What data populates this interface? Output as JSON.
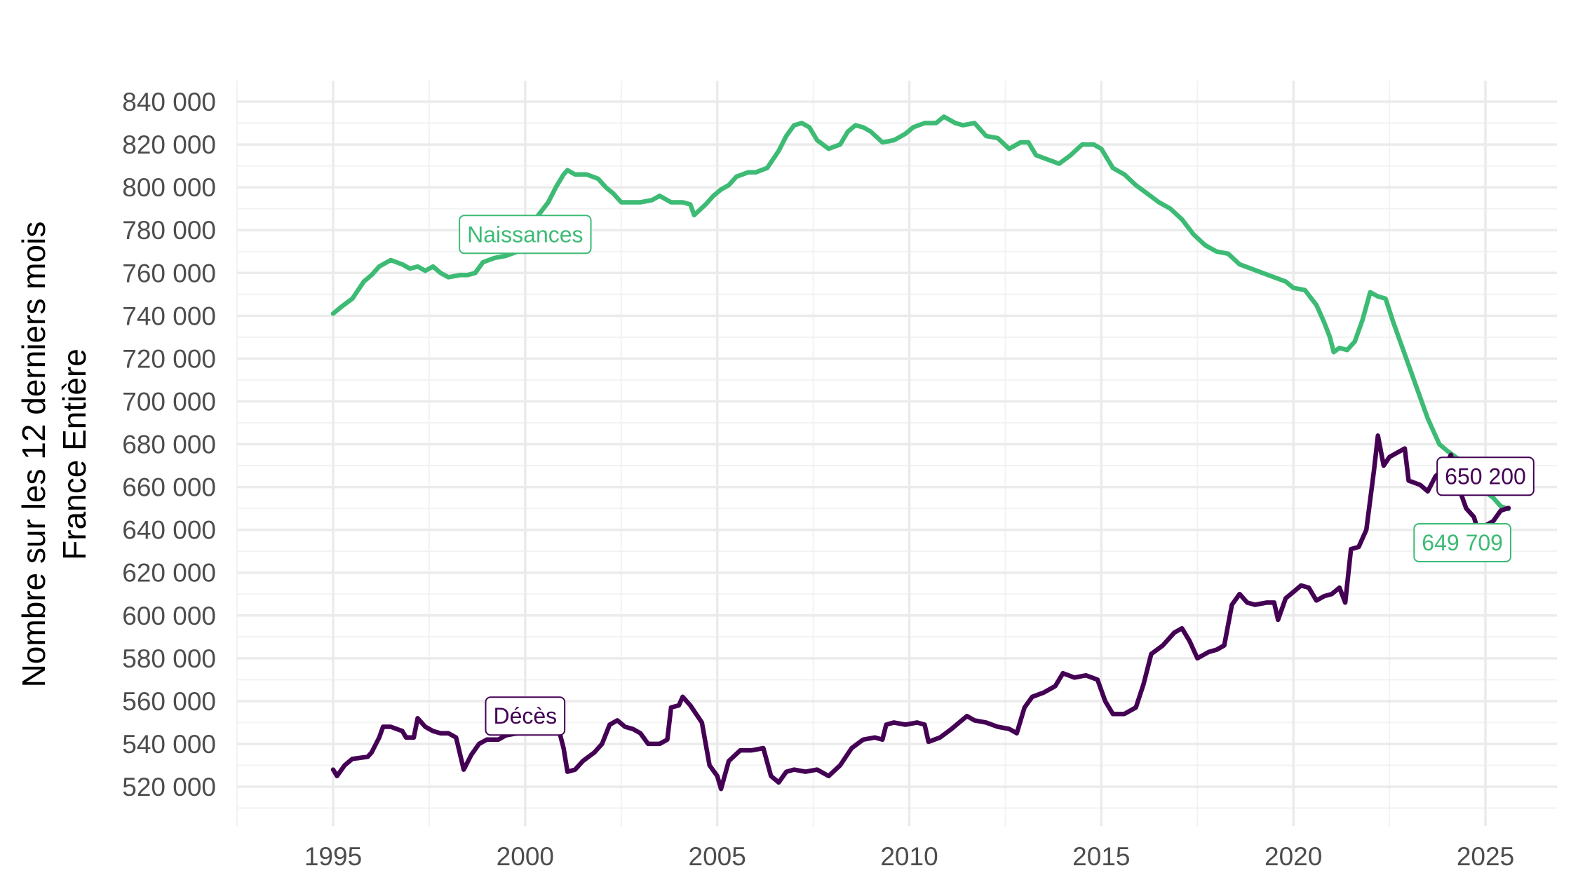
{
  "chart_data": {
    "type": "line",
    "title": "",
    "xlabel": "",
    "ylabel": [
      "Nombre sur les 12 derniers mois",
      "France Entière"
    ],
    "xlim": [
      1990,
      2028
    ],
    "ylim": [
      505000,
      845000
    ],
    "x_ticks": [
      1995,
      2000,
      2005,
      2010,
      2015,
      2020,
      2025
    ],
    "y_ticks": [
      520000,
      540000,
      560000,
      580000,
      600000,
      620000,
      640000,
      660000,
      680000,
      700000,
      720000,
      740000,
      760000,
      780000,
      800000,
      820000,
      840000
    ],
    "y_tick_labels": [
      "520 000",
      "540 000",
      "560 000",
      "580 000",
      "600 000",
      "620 000",
      "640 000",
      "660 000",
      "680 000",
      "700 000",
      "720 000",
      "740 000",
      "760 000",
      "780 000",
      "800 000",
      "820 000",
      "840 000"
    ],
    "x_tick_labels": [
      "1995",
      "2000",
      "2005",
      "2010",
      "2015",
      "2020",
      "2025"
    ],
    "grid": true,
    "legend": "none",
    "series": [
      {
        "name": "Naissances",
        "color": "#3dbb75",
        "points": [
          [
            1995.0,
            741000
          ],
          [
            1995.2,
            744000
          ],
          [
            1995.5,
            748000
          ],
          [
            1995.8,
            756000
          ],
          [
            1996.0,
            759000
          ],
          [
            1996.2,
            763000
          ],
          [
            1996.5,
            766000
          ],
          [
            1996.8,
            764000
          ],
          [
            1997.0,
            762000
          ],
          [
            1997.2,
            763000
          ],
          [
            1997.4,
            761000
          ],
          [
            1997.6,
            763000
          ],
          [
            1997.8,
            760000
          ],
          [
            1998.0,
            758000
          ],
          [
            1998.3,
            759000
          ],
          [
            1998.5,
            759000
          ],
          [
            1998.7,
            760000
          ],
          [
            1998.9,
            765000
          ],
          [
            1999.2,
            767000
          ],
          [
            1999.5,
            768000
          ],
          [
            1999.8,
            770000
          ],
          [
            2000.0,
            776000
          ],
          [
            2000.3,
            786000
          ],
          [
            2000.6,
            793000
          ],
          [
            2000.8,
            800000
          ],
          [
            2001.0,
            806000
          ],
          [
            2001.1,
            808000
          ],
          [
            2001.3,
            806000
          ],
          [
            2001.6,
            806000
          ],
          [
            2001.9,
            804000
          ],
          [
            2002.1,
            800000
          ],
          [
            2002.3,
            797000
          ],
          [
            2002.5,
            793000
          ],
          [
            2002.8,
            793000
          ],
          [
            2003.0,
            793000
          ],
          [
            2003.3,
            794000
          ],
          [
            2003.5,
            796000
          ],
          [
            2003.8,
            793000
          ],
          [
            2004.1,
            793000
          ],
          [
            2004.3,
            792000
          ],
          [
            2004.4,
            787000
          ],
          [
            2004.7,
            792000
          ],
          [
            2004.9,
            796000
          ],
          [
            2005.1,
            799000
          ],
          [
            2005.3,
            801000
          ],
          [
            2005.5,
            805000
          ],
          [
            2005.8,
            807000
          ],
          [
            2006.0,
            807000
          ],
          [
            2006.3,
            809000
          ],
          [
            2006.6,
            817000
          ],
          [
            2006.8,
            824000
          ],
          [
            2007.0,
            829000
          ],
          [
            2007.2,
            830000
          ],
          [
            2007.4,
            828000
          ],
          [
            2007.6,
            822000
          ],
          [
            2007.9,
            818000
          ],
          [
            2008.2,
            820000
          ],
          [
            2008.4,
            826000
          ],
          [
            2008.6,
            829000
          ],
          [
            2008.8,
            828000
          ],
          [
            2009.0,
            826000
          ],
          [
            2009.3,
            821000
          ],
          [
            2009.6,
            822000
          ],
          [
            2009.9,
            825000
          ],
          [
            2010.1,
            828000
          ],
          [
            2010.4,
            830000
          ],
          [
            2010.7,
            830000
          ],
          [
            2010.9,
            833000
          ],
          [
            2011.2,
            830000
          ],
          [
            2011.4,
            829000
          ],
          [
            2011.7,
            830000
          ],
          [
            2012.0,
            824000
          ],
          [
            2012.3,
            823000
          ],
          [
            2012.6,
            818000
          ],
          [
            2012.9,
            821000
          ],
          [
            2013.1,
            821000
          ],
          [
            2013.3,
            815000
          ],
          [
            2013.6,
            813000
          ],
          [
            2013.9,
            811000
          ],
          [
            2014.2,
            815000
          ],
          [
            2014.5,
            820000
          ],
          [
            2014.8,
            820000
          ],
          [
            2015.0,
            818000
          ],
          [
            2015.3,
            809000
          ],
          [
            2015.6,
            806000
          ],
          [
            2015.9,
            801000
          ],
          [
            2016.2,
            797000
          ],
          [
            2016.5,
            793000
          ],
          [
            2016.8,
            790000
          ],
          [
            2017.1,
            785000
          ],
          [
            2017.4,
            778000
          ],
          [
            2017.7,
            773000
          ],
          [
            2018.0,
            770000
          ],
          [
            2018.3,
            769000
          ],
          [
            2018.6,
            764000
          ],
          [
            2018.9,
            762000
          ],
          [
            2019.2,
            760000
          ],
          [
            2019.5,
            758000
          ],
          [
            2019.8,
            756000
          ],
          [
            2020.0,
            753000
          ],
          [
            2020.3,
            752000
          ],
          [
            2020.6,
            745000
          ],
          [
            2020.8,
            737000
          ],
          [
            2020.95,
            730000
          ],
          [
            2021.05,
            723000
          ],
          [
            2021.2,
            725000
          ],
          [
            2021.4,
            724000
          ],
          [
            2021.6,
            728000
          ],
          [
            2021.8,
            738000
          ],
          [
            2022.0,
            751000
          ],
          [
            2022.2,
            749000
          ],
          [
            2022.4,
            748000
          ],
          [
            2022.6,
            737000
          ],
          [
            2022.9,
            722000
          ],
          [
            2023.2,
            707000
          ],
          [
            2023.5,
            692000
          ],
          [
            2023.8,
            680000
          ],
          [
            2024.0,
            677000
          ],
          [
            2024.3,
            673000
          ],
          [
            2024.6,
            668000
          ],
          [
            2024.9,
            659000
          ],
          [
            2025.2,
            655000
          ],
          [
            2025.4,
            651000
          ],
          [
            2025.6,
            649709
          ]
        ]
      },
      {
        "name": "Décès",
        "color": "#440154",
        "points": [
          [
            1995.0,
            528000
          ],
          [
            1995.1,
            525000
          ],
          [
            1995.3,
            530000
          ],
          [
            1995.5,
            533000
          ],
          [
            1995.9,
            534000
          ],
          [
            1996.0,
            536000
          ],
          [
            1996.2,
            543000
          ],
          [
            1996.3,
            548000
          ],
          [
            1996.5,
            548000
          ],
          [
            1996.8,
            546000
          ],
          [
            1996.9,
            543000
          ],
          [
            1997.1,
            543000
          ],
          [
            1997.2,
            552000
          ],
          [
            1997.4,
            548000
          ],
          [
            1997.6,
            546000
          ],
          [
            1997.8,
            545000
          ],
          [
            1998.0,
            545000
          ],
          [
            1998.2,
            543000
          ],
          [
            1998.4,
            528000
          ],
          [
            1998.6,
            535000
          ],
          [
            1998.8,
            540000
          ],
          [
            1999.0,
            542000
          ],
          [
            1999.3,
            542000
          ],
          [
            1999.5,
            544000
          ],
          [
            1999.8,
            545000
          ],
          [
            2000.0,
            547000
          ],
          [
            2000.3,
            546000
          ],
          [
            2000.6,
            547000
          ],
          [
            2000.9,
            545000
          ],
          [
            2001.0,
            538000
          ],
          [
            2001.1,
            527000
          ],
          [
            2001.3,
            528000
          ],
          [
            2001.5,
            532000
          ],
          [
            2001.8,
            536000
          ],
          [
            2002.0,
            540000
          ],
          [
            2002.2,
            549000
          ],
          [
            2002.4,
            551000
          ],
          [
            2002.6,
            548000
          ],
          [
            2002.8,
            547000
          ],
          [
            2003.0,
            545000
          ],
          [
            2003.2,
            540000
          ],
          [
            2003.5,
            540000
          ],
          [
            2003.7,
            542000
          ],
          [
            2003.8,
            557000
          ],
          [
            2004.0,
            558000
          ],
          [
            2004.1,
            562000
          ],
          [
            2004.3,
            558000
          ],
          [
            2004.6,
            550000
          ],
          [
            2004.8,
            530000
          ],
          [
            2005.0,
            525000
          ],
          [
            2005.1,
            519000
          ],
          [
            2005.3,
            532000
          ],
          [
            2005.6,
            537000
          ],
          [
            2005.9,
            537000
          ],
          [
            2006.2,
            538000
          ],
          [
            2006.4,
            525000
          ],
          [
            2006.6,
            522000
          ],
          [
            2006.8,
            527000
          ],
          [
            2007.0,
            528000
          ],
          [
            2007.3,
            527000
          ],
          [
            2007.6,
            528000
          ],
          [
            2007.9,
            525000
          ],
          [
            2008.2,
            530000
          ],
          [
            2008.5,
            538000
          ],
          [
            2008.8,
            542000
          ],
          [
            2009.1,
            543000
          ],
          [
            2009.3,
            542000
          ],
          [
            2009.4,
            549000
          ],
          [
            2009.6,
            550000
          ],
          [
            2009.9,
            549000
          ],
          [
            2010.2,
            550000
          ],
          [
            2010.4,
            549000
          ],
          [
            2010.5,
            541000
          ],
          [
            2010.8,
            543000
          ],
          [
            2011.1,
            547000
          ],
          [
            2011.3,
            550000
          ],
          [
            2011.5,
            553000
          ],
          [
            2011.7,
            551000
          ],
          [
            2012.0,
            550000
          ],
          [
            2012.3,
            548000
          ],
          [
            2012.6,
            547000
          ],
          [
            2012.8,
            545000
          ],
          [
            2013.0,
            557000
          ],
          [
            2013.2,
            562000
          ],
          [
            2013.5,
            564000
          ],
          [
            2013.8,
            567000
          ],
          [
            2014.0,
            573000
          ],
          [
            2014.3,
            571000
          ],
          [
            2014.6,
            572000
          ],
          [
            2014.9,
            570000
          ],
          [
            2015.1,
            560000
          ],
          [
            2015.3,
            554000
          ],
          [
            2015.6,
            554000
          ],
          [
            2015.9,
            557000
          ],
          [
            2016.1,
            568000
          ],
          [
            2016.3,
            582000
          ],
          [
            2016.6,
            586000
          ],
          [
            2016.9,
            592000
          ],
          [
            2017.1,
            594000
          ],
          [
            2017.3,
            588000
          ],
          [
            2017.5,
            580000
          ],
          [
            2017.8,
            583000
          ],
          [
            2018.0,
            584000
          ],
          [
            2018.2,
            586000
          ],
          [
            2018.4,
            605000
          ],
          [
            2018.6,
            610000
          ],
          [
            2018.8,
            606000
          ],
          [
            2019.0,
            605000
          ],
          [
            2019.3,
            606000
          ],
          [
            2019.5,
            606000
          ],
          [
            2019.6,
            598000
          ],
          [
            2019.8,
            608000
          ],
          [
            2020.0,
            611000
          ],
          [
            2020.2,
            614000
          ],
          [
            2020.4,
            613000
          ],
          [
            2020.6,
            607000
          ],
          [
            2020.8,
            609000
          ],
          [
            2021.0,
            610000
          ],
          [
            2021.2,
            613000
          ],
          [
            2021.35,
            606000
          ],
          [
            2021.5,
            631000
          ],
          [
            2021.7,
            632000
          ],
          [
            2021.9,
            640000
          ],
          [
            2022.1,
            668000
          ],
          [
            2022.2,
            684000
          ],
          [
            2022.35,
            670000
          ],
          [
            2022.5,
            674000
          ],
          [
            2022.7,
            676000
          ],
          [
            2022.9,
            678000
          ],
          [
            2023.0,
            663000
          ],
          [
            2023.3,
            661000
          ],
          [
            2023.5,
            658000
          ],
          [
            2023.7,
            665000
          ],
          [
            2023.9,
            668000
          ],
          [
            2024.1,
            675000
          ],
          [
            2024.3,
            660000
          ],
          [
            2024.5,
            650000
          ],
          [
            2024.7,
            646000
          ],
          [
            2024.8,
            640000
          ],
          [
            2025.0,
            642000
          ],
          [
            2025.2,
            644000
          ],
          [
            2025.4,
            649000
          ],
          [
            2025.6,
            650200
          ]
        ]
      }
    ],
    "labels": [
      {
        "text": "Naissances",
        "series": 0,
        "x": 2000.0,
        "y": 778000
      },
      {
        "text": "Décès",
        "series": 1,
        "x": 2000.0,
        "y": 553000
      },
      {
        "text": "650 200",
        "series": 1,
        "x": 2025.0,
        "y": 665000
      },
      {
        "text": "649 709",
        "series": 0,
        "x": 2024.4,
        "y": 634000
      }
    ]
  }
}
